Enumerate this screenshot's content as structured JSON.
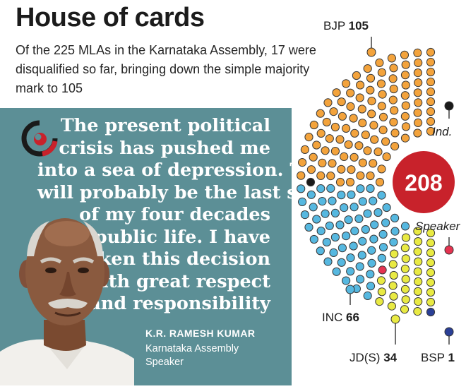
{
  "header": {
    "title": "House of cards",
    "subtitle": "Of the 225 MLAs in the Karnataka Assembly, 17 were disqualified so far, bringing down the simple majority mark to 105"
  },
  "quote": {
    "lines": [
      "The present political",
      "crisis has pushed me",
      "into a sea of depression. This",
      "will probably be the last stage",
      "of my four decades",
      "of public life. I have",
      "taken this decision",
      "with great respect",
      "and responsibility"
    ],
    "author": "K.R. RAMESH KUMAR",
    "role": "Karnataka Assembly Speaker",
    "logo_icon": "quote-mark-logo-icon",
    "photo_icon": "speaker-portrait-image"
  },
  "chart_data": {
    "type": "parliament",
    "total": 208,
    "parties": [
      {
        "name": "BJP",
        "seats": 105,
        "color": "#f3a33c"
      },
      {
        "name": "Ind.",
        "seats": 1,
        "color": "#1a1a1a"
      },
      {
        "name": "INC",
        "seats": 66,
        "color": "#56b8e0"
      },
      {
        "name": "Speaker",
        "seats": 1,
        "color": "#e53350"
      },
      {
        "name": "JD(S)",
        "seats": 34,
        "color": "#e9ea43"
      },
      {
        "name": "BSP",
        "seats": 1,
        "color": "#2a3f96"
      }
    ],
    "labels": {
      "bjp": "BJP",
      "bjp_count": "105",
      "ind": "Ind.",
      "inc": "INC",
      "inc_count": "66",
      "speaker": "Speaker",
      "jds": "JD(S)",
      "jds_count": "34",
      "bsp": "BSP",
      "bsp_count": "1",
      "total": "208"
    },
    "center_color": "#c8222b"
  }
}
